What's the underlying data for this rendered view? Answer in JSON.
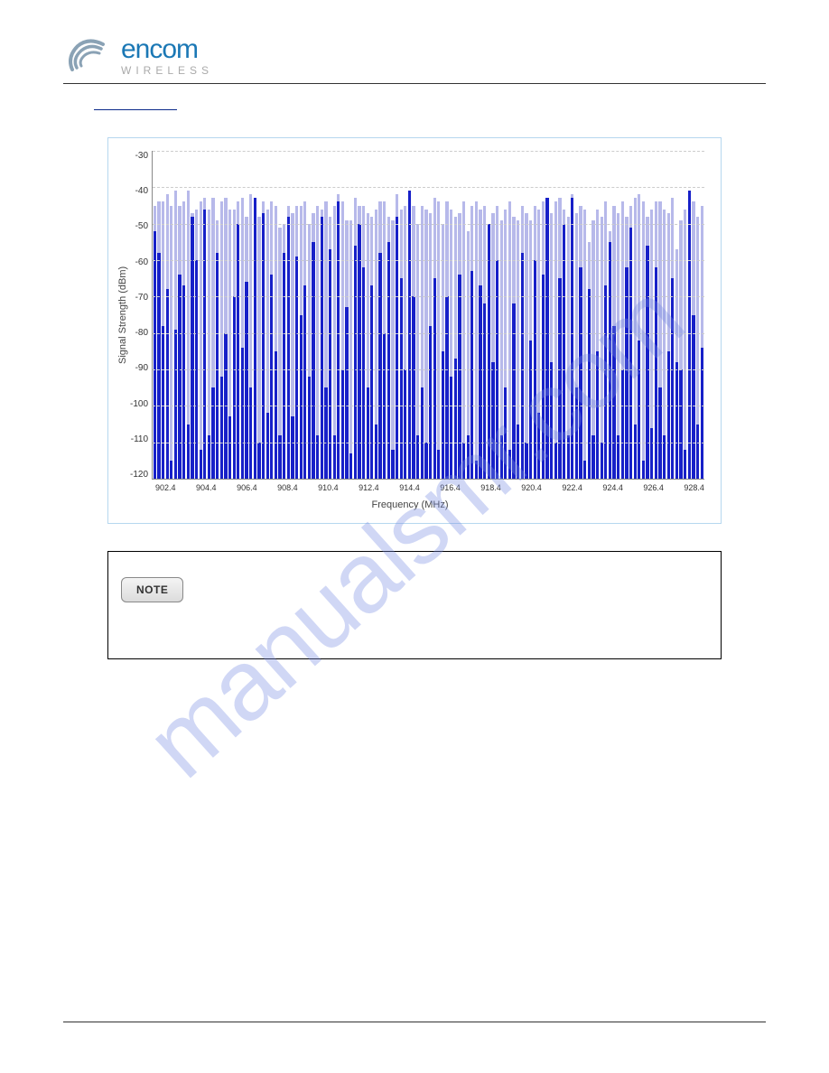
{
  "logo": {
    "main": "encom",
    "sub": "WIRELESS"
  },
  "watermark": "manualsmr.com",
  "note": {
    "badge": "NOTE"
  },
  "chart": {
    "type": "bar",
    "ylabel": "Signal Strength (dBm)",
    "xlabel": "Frequency (MHz)",
    "ylim_top": -30,
    "ylim_bottom": -120,
    "yticks": [
      "-30",
      "-40",
      "-50",
      "-60",
      "-70",
      "-80",
      "-90",
      "-100",
      "-110",
      "-120"
    ],
    "xticks": [
      "902.4",
      "904.4",
      "906.4",
      "908.4",
      "910.4",
      "912.4",
      "914.4",
      "916.4",
      "918.4",
      "920.4",
      "922.4",
      "924.4",
      "926.4",
      "928.4"
    ],
    "bg_color": "#b7b9ea",
    "fg_color": "#1720c8",
    "grid_color": "#cccccc",
    "border_color": "#888888",
    "frame_border": "#b6d7ef",
    "n_bars": 132,
    "bg_values": [
      -45,
      -44,
      -44,
      -42,
      -45,
      -41,
      -45,
      -44,
      -41,
      -47,
      -46,
      -44,
      -43,
      -46,
      -43,
      -49,
      -44,
      -43,
      -46,
      -46,
      -44,
      -43,
      -48,
      -42,
      -44,
      -48,
      -44,
      -46,
      -44,
      -45,
      -51,
      -50,
      -45,
      -47,
      -45,
      -45,
      -44,
      -50,
      -47,
      -45,
      -46,
      -44,
      -48,
      -45,
      -42,
      -44,
      -49,
      -49,
      -43,
      -45,
      -45,
      -47,
      -48,
      -46,
      -44,
      -44,
      -48,
      -49,
      -42,
      -46,
      -45,
      -41,
      -45,
      -50,
      -45,
      -46,
      -47,
      -43,
      -44,
      -50,
      -44,
      -46,
      -48,
      -47,
      -44,
      -52,
      -45,
      -44,
      -46,
      -45,
      -50,
      -47,
      -45,
      -49,
      -46,
      -44,
      -48,
      -49,
      -45,
      -47,
      -49,
      -45,
      -46,
      -44,
      -47,
      -47,
      -44,
      -43,
      -46,
      -48,
      -42,
      -47,
      -45,
      -46,
      -55,
      -49,
      -46,
      -48,
      -44,
      -52,
      -45,
      -47,
      -44,
      -48,
      -45,
      -43,
      -42,
      -44,
      -48,
      -46,
      -44,
      -44,
      -46,
      -47,
      -43,
      -57,
      -49,
      -46,
      -41,
      -44,
      -48,
      -45
    ],
    "fg_values": [
      -52,
      -58,
      -78,
      -68,
      -115,
      -79,
      -64,
      -67,
      -105,
      -48,
      -60,
      -112,
      -46,
      -108,
      -95,
      -58,
      -92,
      -80,
      -103,
      -70,
      -50,
      -84,
      -66,
      -95,
      -43,
      -110,
      -47,
      -102,
      -64,
      -85,
      -108,
      -58,
      -48,
      -103,
      -59,
      -75,
      -67,
      -92,
      -55,
      -108,
      -48,
      -95,
      -57,
      -108,
      -44,
      -90,
      -73,
      -113,
      -56,
      -50,
      -62,
      -95,
      -67,
      -105,
      -58,
      -80,
      -55,
      -112,
      -48,
      -65,
      -90,
      -41,
      -70,
      -108,
      -95,
      -110,
      -78,
      -65,
      -112,
      -85,
      -70,
      -92,
      -87,
      -64,
      -110,
      -108,
      -63,
      -115,
      -67,
      -72,
      -50,
      -88,
      -60,
      -108,
      -95,
      -112,
      -72,
      -105,
      -58,
      -110,
      -82,
      -60,
      -102,
      -64,
      -43,
      -88,
      -110,
      -65,
      -50,
      -108,
      -43,
      -95,
      -62,
      -115,
      -68,
      -108,
      -85,
      -110,
      -67,
      -55,
      -78,
      -108,
      -90,
      -62,
      -51,
      -105,
      -82,
      -115,
      -56,
      -106,
      -62,
      -95,
      -108,
      -85,
      -65,
      -88,
      -90,
      -112,
      -41,
      -75,
      -105,
      -84
    ]
  }
}
